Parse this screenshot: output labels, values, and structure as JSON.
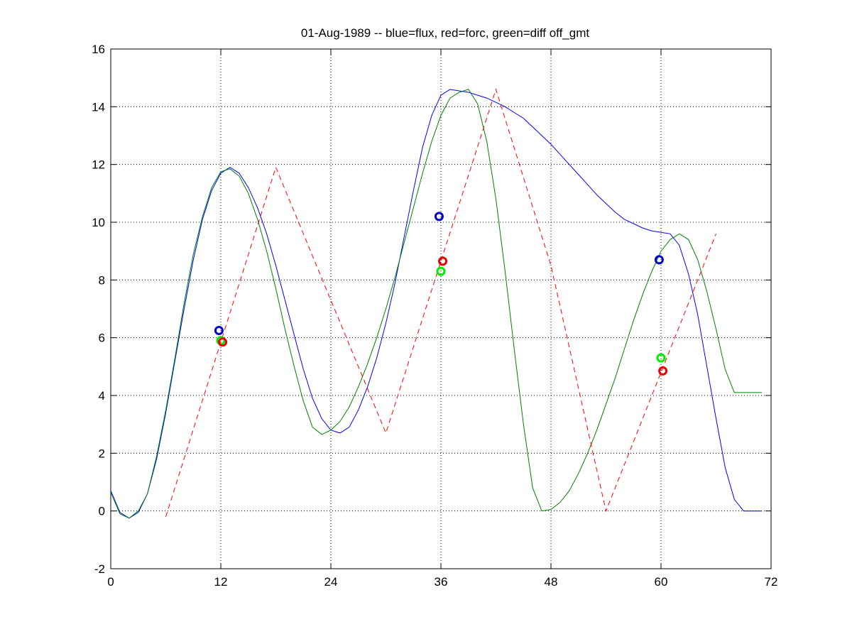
{
  "chart_data": {
    "type": "line",
    "title": "01-Aug-1989 -- blue=flux, red=forc, green=diff off_gmt",
    "xlabel": "",
    "ylabel": "",
    "xlim": [
      0,
      72
    ],
    "ylim": [
      -2,
      16
    ],
    "xticks": [
      0,
      12,
      24,
      36,
      48,
      60,
      72
    ],
    "yticks": [
      -2,
      0,
      2,
      4,
      6,
      8,
      10,
      12,
      14,
      16
    ],
    "grid": true,
    "legend": "none",
    "series": [
      {
        "color": "#0000ff",
        "style": "solid",
        "x": [
          0,
          1,
          2,
          3,
          4,
          5,
          6,
          7,
          8,
          9,
          10,
          11,
          12,
          13,
          14,
          15,
          16,
          17,
          18,
          19,
          20,
          21,
          22,
          23,
          24,
          25,
          26,
          27,
          28,
          29,
          30,
          31,
          32,
          33,
          34,
          35,
          36,
          37,
          38,
          39,
          40,
          41,
          42,
          43,
          44,
          45,
          46,
          47,
          48,
          49,
          50,
          51,
          52,
          53,
          54,
          55,
          56,
          57,
          58,
          59,
          60,
          61,
          62,
          63,
          64,
          65,
          66,
          67,
          68,
          69,
          70,
          71
        ],
        "y": [
          0.7,
          -0.05,
          -0.25,
          -0.05,
          0.6,
          1.8,
          3.4,
          5.2,
          7.0,
          8.7,
          10.1,
          11.1,
          11.7,
          11.9,
          11.7,
          11.2,
          10.5,
          9.6,
          8.5,
          7.3,
          6.1,
          4.9,
          3.9,
          3.2,
          2.8,
          2.7,
          2.9,
          3.5,
          4.3,
          5.3,
          6.5,
          7.9,
          9.5,
          11.1,
          12.6,
          13.7,
          14.4,
          14.6,
          14.55,
          14.5,
          14.4,
          14.3,
          14.15,
          14.0,
          13.8,
          13.6,
          13.3,
          13.0,
          12.7,
          12.35,
          12.0,
          11.65,
          11.3,
          10.95,
          10.65,
          10.35,
          10.1,
          9.95,
          9.8,
          9.7,
          9.65,
          9.6,
          9.2,
          8.2,
          6.8,
          5.0,
          3.2,
          1.5,
          0.4,
          0.0,
          0.0,
          0.0
        ]
      },
      {
        "color": "#008000",
        "style": "solid",
        "x": [
          0,
          1,
          2,
          3,
          4,
          5,
          6,
          7,
          8,
          9,
          10,
          11,
          12,
          13,
          14,
          15,
          16,
          17,
          18,
          19,
          20,
          21,
          22,
          23,
          24,
          25,
          26,
          27,
          28,
          29,
          30,
          31,
          32,
          33,
          34,
          35,
          36,
          37,
          38,
          39,
          40,
          41,
          42,
          43,
          44,
          45,
          46,
          47,
          48,
          49,
          50,
          51,
          52,
          53,
          54,
          55,
          56,
          57,
          58,
          59,
          60,
          61,
          62,
          63,
          64,
          65,
          66,
          67,
          68,
          69,
          70,
          71
        ],
        "y": [
          0.65,
          -0.1,
          -0.25,
          0.0,
          0.6,
          1.9,
          3.5,
          5.3,
          7.2,
          8.9,
          10.2,
          11.2,
          11.75,
          11.85,
          11.6,
          11.0,
          10.1,
          9.0,
          7.7,
          6.3,
          5.0,
          3.8,
          2.9,
          2.65,
          2.8,
          3.1,
          3.6,
          4.3,
          5.1,
          6.0,
          7.0,
          8.1,
          9.3,
          10.5,
          11.7,
          12.8,
          13.7,
          14.3,
          14.5,
          14.6,
          14.1,
          12.8,
          10.8,
          8.3,
          5.6,
          3.0,
          0.8,
          0.0,
          0.05,
          0.3,
          0.7,
          1.3,
          2.0,
          2.8,
          3.7,
          4.6,
          5.6,
          6.6,
          7.5,
          8.3,
          9.0,
          9.4,
          9.6,
          9.4,
          8.7,
          7.6,
          6.3,
          4.9,
          4.1,
          4.1,
          4.1,
          4.1
        ]
      },
      {
        "color": "#ff0000",
        "style": "dashed",
        "x": [
          6,
          18,
          24,
          30,
          42,
          48,
          54,
          66
        ],
        "y": [
          -0.2,
          11.9,
          7.3,
          2.7,
          14.6,
          8.5,
          0.0,
          9.6
        ]
      }
    ],
    "markers": [
      {
        "color": "#0000cc",
        "x": 11.8,
        "y": 6.25
      },
      {
        "color": "#00ee00",
        "x": 12.0,
        "y": 5.9
      },
      {
        "color": "#ee0000",
        "x": 12.2,
        "y": 5.85
      },
      {
        "color": "#0000cc",
        "x": 35.8,
        "y": 10.2
      },
      {
        "color": "#00ee00",
        "x": 36.0,
        "y": 8.3
      },
      {
        "color": "#ee0000",
        "x": 36.2,
        "y": 8.65
      },
      {
        "color": "#0000cc",
        "x": 59.8,
        "y": 8.7
      },
      {
        "color": "#00ee00",
        "x": 60.0,
        "y": 5.3
      },
      {
        "color": "#ee0000",
        "x": 60.2,
        "y": 4.85
      }
    ]
  }
}
